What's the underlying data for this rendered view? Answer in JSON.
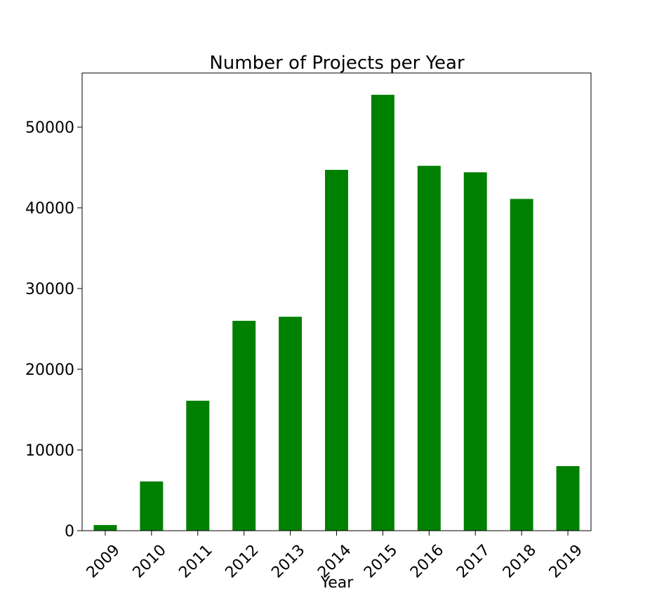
{
  "chart_data": {
    "type": "bar",
    "title": "Number of Projects per Year",
    "xlabel": "Year",
    "ylabel": "",
    "categories": [
      "2009",
      "2010",
      "2011",
      "2012",
      "2013",
      "2014",
      "2015",
      "2016",
      "2017",
      "2018",
      "2019"
    ],
    "values": [
      700,
      6100,
      16100,
      26000,
      26500,
      44700,
      54000,
      45200,
      44400,
      41100,
      8000
    ],
    "ylim": [
      0,
      56700
    ],
    "yticks": [
      0,
      10000,
      20000,
      30000,
      40000,
      50000
    ],
    "ytick_labels": [
      "0",
      "10000",
      "20000",
      "30000",
      "40000",
      "50000"
    ],
    "xtick_rotation_deg": 45,
    "bar_color": "#008000",
    "grid": false,
    "legend": "none"
  }
}
